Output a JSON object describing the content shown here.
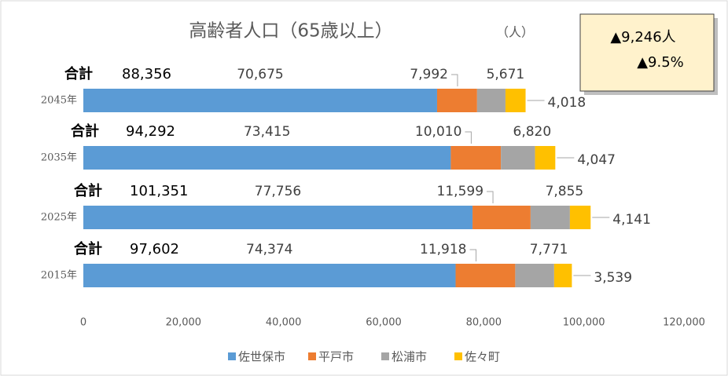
{
  "chart_data": {
    "type": "stacked_bar_horizontal",
    "title": "高齢者人口（65歳以上）",
    "unit_label": "（人）",
    "categories": [
      "2045年",
      "2035年",
      "2025年",
      "2015年"
    ],
    "series": [
      {
        "name": "佐世保市",
        "color": "#5b9bd5",
        "values": [
          70675,
          73415,
          77756,
          74374
        ],
        "value_labels": [
          "70,675",
          "73,415",
          "77,756",
          "74,374"
        ]
      },
      {
        "name": "平戸市",
        "color": "#ed7d31",
        "values": [
          7992,
          10010,
          11599,
          11918
        ],
        "value_labels": [
          "7,992",
          "10,010",
          "11,599",
          "11,918"
        ]
      },
      {
        "name": "松浦市",
        "color": "#a5a5a5",
        "values": [
          5671,
          6820,
          7855,
          7771
        ],
        "value_labels": [
          "5,671",
          "6,820",
          "7,855",
          "7,771"
        ]
      },
      {
        "name": "佐々町",
        "color": "#ffc000",
        "values": [
          4018,
          4047,
          4141,
          3539
        ],
        "value_labels": [
          "4,018",
          "4,047",
          "4,141",
          "3,539"
        ]
      }
    ],
    "total_name": "合計",
    "totals": [
      88356,
      94292,
      101351,
      97602
    ],
    "totals_labels": [
      "88,356",
      "94,292",
      "101,351",
      "97,602"
    ],
    "annotations": [
      "▲9,246人",
      "▲9.5%"
    ],
    "xlim": [
      0,
      120000
    ],
    "xticks": [
      0,
      {
        "value": 20000,
        "label": "20,000"
      },
      {
        "value": 40000,
        "label": "40,000"
      },
      {
        "value": 60000,
        "label": "60,000"
      },
      {
        "value": 80000,
        "label": "80,000"
      },
      {
        "value": 100000,
        "label": "100,000"
      },
      {
        "value": 120000,
        "label": "120,000"
      }
    ],
    "legend": "bottom"
  }
}
